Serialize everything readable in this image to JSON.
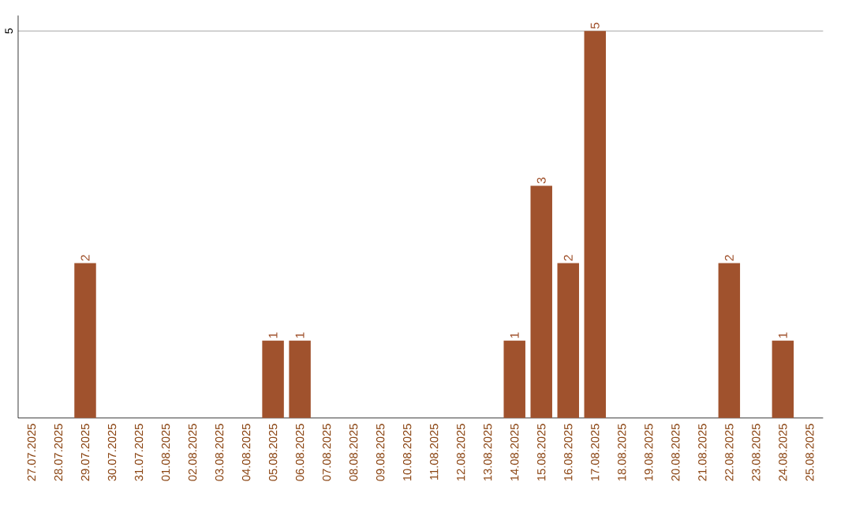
{
  "chart_data": {
    "type": "bar",
    "categories": [
      "27.07.2025",
      "28.07.2025",
      "29.07.2025",
      "30.07.2025",
      "31.07.2025",
      "01.08.2025",
      "02.08.2025",
      "03.08.2025",
      "04.08.2025",
      "05.08.2025",
      "06.08.2025",
      "07.08.2025",
      "08.08.2025",
      "09.08.2025",
      "10.08.2025",
      "11.08.2025",
      "12.08.2025",
      "13.08.2025",
      "14.08.2025",
      "15.08.2025",
      "16.08.2025",
      "17.08.2025",
      "18.08.2025",
      "19.08.2025",
      "20.08.2025",
      "21.08.2025",
      "22.08.2025",
      "23.08.2025",
      "24.08.2025",
      "25.08.2025"
    ],
    "values": [
      0,
      0,
      2,
      0,
      0,
      0,
      0,
      0,
      0,
      1,
      1,
      0,
      0,
      0,
      0,
      0,
      0,
      0,
      1,
      3,
      2,
      5,
      0,
      0,
      0,
      0,
      2,
      0,
      1,
      0
    ],
    "value_labels": [
      null,
      null,
      "2",
      null,
      null,
      null,
      null,
      null,
      null,
      "1",
      "1",
      null,
      null,
      null,
      null,
      null,
      null,
      null,
      "1",
      "3",
      "2",
      "5",
      null,
      null,
      null,
      null,
      "2",
      null,
      "1",
      null
    ],
    "color": "#a0522d",
    "ylim": [
      0,
      5.2
    ],
    "yticks": [
      5
    ],
    "grid": "y"
  }
}
